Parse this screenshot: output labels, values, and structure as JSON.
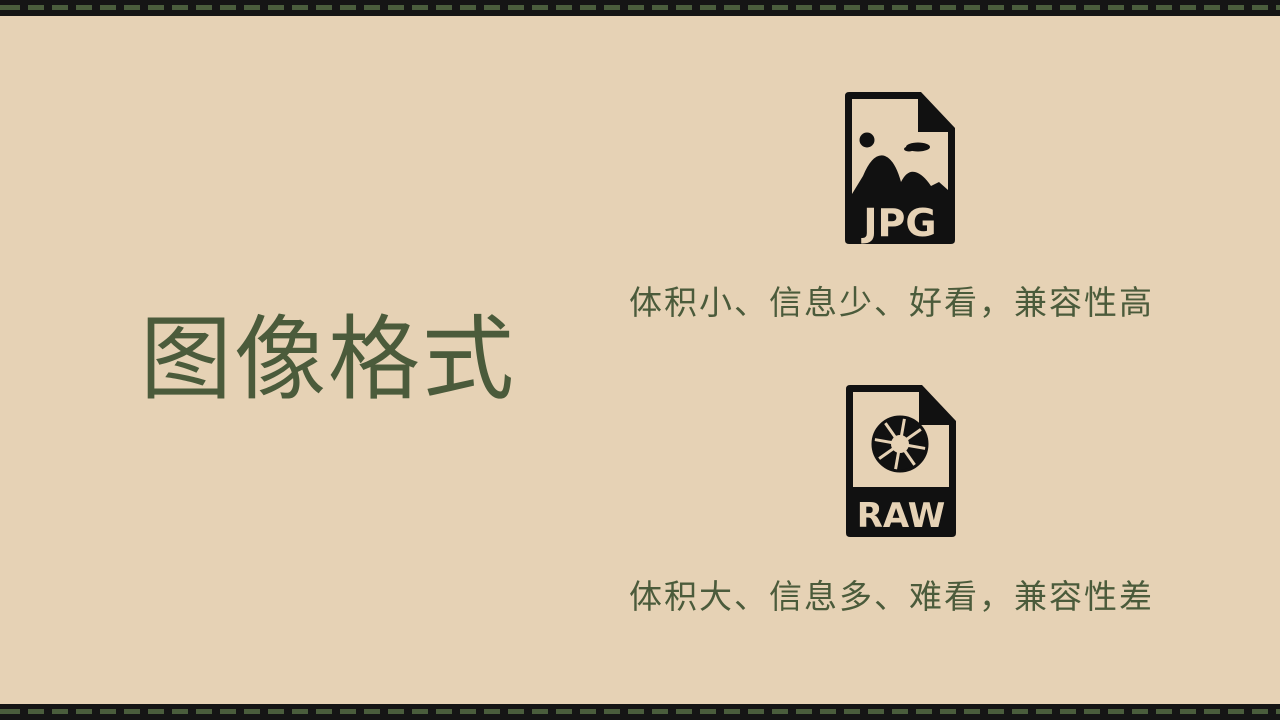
{
  "title": "图像格式",
  "formats": [
    {
      "icon": "jpg-file-icon",
      "icon_label": "JPG",
      "caption": "体积小、信息少、好看，兼容性高"
    },
    {
      "icon": "raw-file-icon",
      "icon_label": "RAW",
      "caption": "体积大、信息多、难看，兼容性差"
    }
  ],
  "colors": {
    "background": "#e6d2b5",
    "text": "#4b5b3b",
    "icon": "#111111",
    "film_strip": "#151515",
    "film_perforation": "#4a5d3c"
  }
}
